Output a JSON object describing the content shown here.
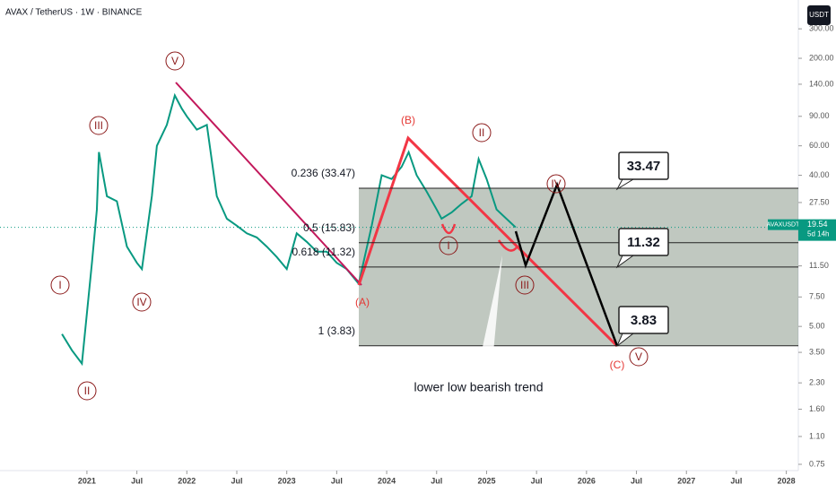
{
  "header": {
    "title": "AVAX / TetherUS · 1W · BINANCE",
    "currency": "USDT"
  },
  "chart_data": {
    "type": "line",
    "log_scale": true,
    "color": "#089981",
    "x": [
      2020.75,
      2020.85,
      2020.95,
      2021.05,
      2021.1,
      2021.12,
      2021.2,
      2021.3,
      2021.4,
      2021.5,
      2021.55,
      2021.65,
      2021.7,
      2021.8,
      2021.88,
      2021.95,
      2022.0,
      2022.1,
      2022.2,
      2022.3,
      2022.4,
      2022.5,
      2022.6,
      2022.7,
      2022.8,
      2022.9,
      2023.0,
      2023.1,
      2023.2,
      2023.3,
      2023.4,
      2023.5,
      2023.6,
      2023.72,
      2023.85,
      2023.95,
      2024.05,
      2024.15,
      2024.22,
      2024.3,
      2024.4,
      2024.5,
      2024.55,
      2024.65,
      2024.75,
      2024.85,
      2024.92,
      2025.0,
      2025.1,
      2025.29
    ],
    "values": [
      4.5,
      3.6,
      3.0,
      12,
      25,
      55,
      30,
      28,
      15,
      12,
      11,
      30,
      60,
      80,
      120,
      100,
      90,
      75,
      80,
      30,
      22,
      20,
      18,
      17,
      15,
      13,
      11,
      18,
      16,
      14,
      14,
      12,
      11,
      9,
      20,
      40,
      38,
      45,
      55,
      40,
      32,
      25,
      22,
      24,
      27,
      30,
      50,
      38,
      25,
      19.54
    ],
    "xlim": [
      2020.13,
      2028.12
    ],
    "xticks": [
      2021,
      {
        "value": 2021.5,
        "label": "Jul"
      },
      2022,
      {
        "value": 2022.5,
        "label": "Jul"
      },
      2023,
      {
        "value": 2023.5,
        "label": "Jul"
      },
      2024,
      {
        "value": 2024.5,
        "label": "Jul"
      },
      2025,
      {
        "value": 2025.5,
        "label": "Jul"
      },
      2026,
      {
        "value": 2026.5,
        "label": "Jul"
      },
      2027,
      {
        "value": 2027.5,
        "label": "Jul"
      },
      2028
    ],
    "ylim": [
      0.688,
      446
    ],
    "yticks": [
      {
        "value": 300,
        "label": "300.00"
      },
      {
        "value": 200,
        "label": "200.00"
      },
      {
        "value": 140,
        "label": "140.00"
      },
      {
        "value": 90,
        "label": "90.00"
      },
      {
        "value": 60,
        "label": "60.00"
      },
      {
        "value": 40,
        "label": "40.00"
      },
      {
        "value": 27.5,
        "label": "27.50"
      },
      {
        "value": 11.5,
        "label": "11.50"
      },
      {
        "value": 7.5,
        "label": "7.50"
      },
      {
        "value": 5,
        "label": "5.00"
      },
      {
        "value": 3.5,
        "label": "3.50"
      },
      {
        "value": 2.3,
        "label": "2.30"
      },
      {
        "value": 1.6,
        "label": "1.60"
      },
      {
        "value": 1.1,
        "label": "1.10"
      },
      {
        "value": 0.75,
        "label": "0.75"
      }
    ],
    "last_price": {
      "symbol": "AVAXUSDT",
      "value": 19.54,
      "countdown": "5d 14h"
    },
    "fib_levels": [
      {
        "label": "0.236 (33.47)",
        "value": 33.47
      },
      {
        "label": "0.5 (15.83)",
        "value": 15.83
      },
      {
        "label": "0.618 (11.32)",
        "value": 11.32
      },
      {
        "label": "1 (3.83)",
        "value": 3.83
      }
    ],
    "callouts": [
      "33.47",
      "11.32",
      "3.83",
      "lower low bearish trend"
    ],
    "wave_labels": [
      "I",
      "II",
      "III",
      "IV",
      "V",
      "(A)",
      "(B)",
      "I",
      "II",
      "III",
      "IV",
      "(C)",
      "V"
    ]
  }
}
